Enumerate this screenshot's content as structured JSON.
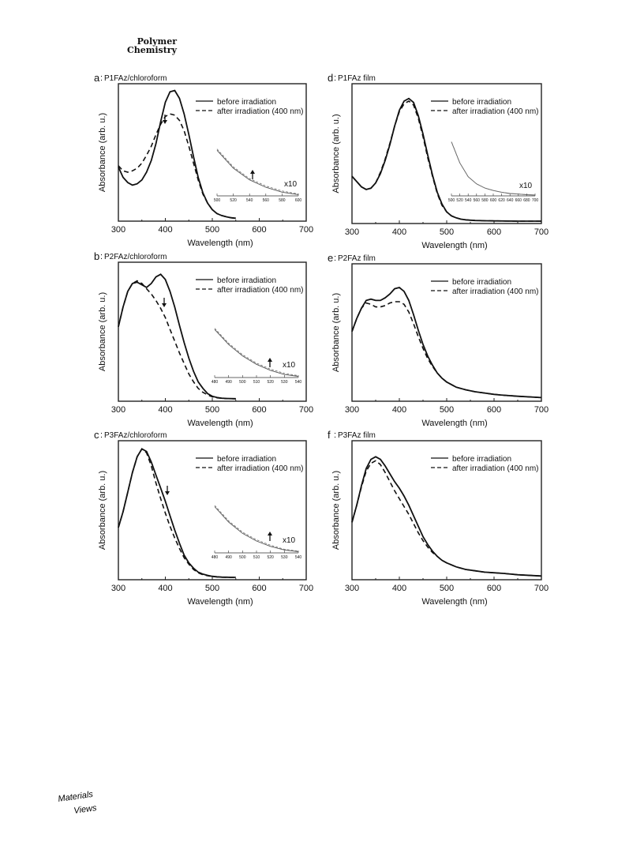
{
  "header": {
    "journal_line1": "Polymer",
    "journal_line2": "Chemistry"
  },
  "logo": {
    "text_line1": "Materials",
    "text_line2": "Views"
  },
  "shared": {
    "xlabel": "Wavelength (nm)",
    "ylabel": "Absorbance (arb. u.)",
    "legend_before": "before irradiation",
    "legend_after": "after irradiation (400 nm)"
  },
  "chart_data": [
    {
      "type": "line",
      "panel_letter": "a",
      "title": "P1FAz/chloroform",
      "xlim": [
        300,
        700
      ],
      "xticks": [
        300,
        400,
        500,
        600,
        700
      ],
      "xlabel": "Wavelength (nm)",
      "ylabel": "Absorbance (arb. u.)",
      "ylim": [
        0,
        1
      ],
      "legend": "top-right",
      "annotation_arrow": "down",
      "series": [
        {
          "name": "before irradiation",
          "style": "solid",
          "x": [
            300,
            310,
            320,
            330,
            340,
            350,
            360,
            370,
            380,
            390,
            400,
            410,
            420,
            430,
            440,
            450,
            460,
            470,
            480,
            490,
            500,
            510,
            520,
            530,
            540,
            550
          ],
          "y": [
            0.4,
            0.32,
            0.28,
            0.26,
            0.27,
            0.3,
            0.36,
            0.45,
            0.58,
            0.75,
            0.9,
            0.98,
            0.99,
            0.93,
            0.81,
            0.65,
            0.48,
            0.32,
            0.2,
            0.12,
            0.07,
            0.04,
            0.025,
            0.015,
            0.008,
            0.004
          ]
        },
        {
          "name": "after irradiation (400 nm)",
          "style": "dashed",
          "x": [
            300,
            310,
            320,
            330,
            340,
            350,
            360,
            370,
            380,
            390,
            400,
            410,
            420,
            430,
            440,
            450,
            460,
            470,
            480,
            490,
            500,
            510,
            520,
            530,
            540,
            550
          ],
          "y": [
            0.41,
            0.37,
            0.36,
            0.37,
            0.39,
            0.43,
            0.49,
            0.56,
            0.65,
            0.73,
            0.79,
            0.81,
            0.8,
            0.76,
            0.68,
            0.56,
            0.43,
            0.3,
            0.19,
            0.12,
            0.07,
            0.04,
            0.025,
            0.015,
            0.008,
            0.004
          ]
        }
      ],
      "inset": {
        "x": [
          500,
          520,
          540,
          560,
          580,
          600
        ],
        "xticklabels": [
          "500",
          "520",
          "540",
          "560",
          "580",
          "600"
        ],
        "label": "x10",
        "arrow": "up",
        "before": [
          0.74,
          0.45,
          0.26,
          0.14,
          0.06,
          0.02
        ],
        "after": [
          0.76,
          0.47,
          0.28,
          0.16,
          0.08,
          0.03
        ]
      }
    },
    {
      "type": "line",
      "panel_letter": "b",
      "title": "P2FAz/chloroform",
      "xlim": [
        300,
        700
      ],
      "xticks": [
        300,
        400,
        500,
        600,
        700
      ],
      "xlabel": "Wavelength (nm)",
      "ylabel": "Absorbance (arb. u.)",
      "ylim": [
        0,
        1
      ],
      "legend": "top-right",
      "annotation_arrow": "down",
      "series": [
        {
          "name": "before irradiation",
          "style": "solid",
          "x": [
            300,
            310,
            320,
            330,
            340,
            350,
            360,
            370,
            380,
            390,
            400,
            410,
            420,
            430,
            440,
            450,
            460,
            470,
            480,
            490,
            500,
            510,
            520,
            530,
            540,
            550
          ],
          "y": [
            0.55,
            0.7,
            0.82,
            0.88,
            0.89,
            0.87,
            0.85,
            0.88,
            0.93,
            0.95,
            0.91,
            0.82,
            0.7,
            0.56,
            0.43,
            0.31,
            0.21,
            0.13,
            0.08,
            0.04,
            0.02,
            0.01,
            0.005,
            0.003,
            0.002,
            0.001
          ]
        },
        {
          "name": "after irradiation (400 nm)",
          "style": "dashed",
          "x": [
            300,
            310,
            320,
            330,
            340,
            350,
            360,
            370,
            380,
            390,
            400,
            410,
            420,
            430,
            440,
            450,
            460,
            470,
            480,
            490,
            500,
            510,
            520,
            530,
            540,
            550
          ],
          "y": [
            0.55,
            0.7,
            0.82,
            0.88,
            0.9,
            0.88,
            0.84,
            0.8,
            0.75,
            0.69,
            0.62,
            0.53,
            0.44,
            0.35,
            0.27,
            0.19,
            0.13,
            0.08,
            0.05,
            0.03,
            0.015,
            0.008,
            0.004,
            0.002,
            0.001,
            0.0
          ]
        }
      ],
      "inset": {
        "x": [
          480,
          490,
          500,
          510,
          520,
          530,
          540
        ],
        "xticklabels": [
          "480",
          "490",
          "500",
          "510",
          "520",
          "530",
          "540"
        ],
        "label": "x10",
        "arrow": "up",
        "before": [
          0.8,
          0.55,
          0.36,
          0.22,
          0.12,
          0.05,
          0.02
        ],
        "after": [
          0.82,
          0.57,
          0.38,
          0.24,
          0.14,
          0.07,
          0.03
        ]
      }
    },
    {
      "type": "line",
      "panel_letter": "c",
      "title": "P3FAz/chloroform",
      "xlim": [
        300,
        700
      ],
      "xticks": [
        300,
        400,
        500,
        600,
        700
      ],
      "xlabel": "Wavelength (nm)",
      "ylabel": "Absorbance (arb. u.)",
      "ylim": [
        0,
        1
      ],
      "legend": "top-right",
      "annotation_arrow": "down",
      "series": [
        {
          "name": "before irradiation",
          "style": "solid",
          "x": [
            300,
            310,
            320,
            330,
            340,
            350,
            360,
            370,
            380,
            390,
            400,
            410,
            420,
            430,
            440,
            450,
            460,
            470,
            480,
            490,
            500,
            510,
            520,
            530,
            540,
            550
          ],
          "y": [
            0.38,
            0.5,
            0.65,
            0.8,
            0.92,
            0.98,
            0.96,
            0.88,
            0.78,
            0.68,
            0.58,
            0.47,
            0.36,
            0.26,
            0.17,
            0.11,
            0.07,
            0.04,
            0.025,
            0.015,
            0.008,
            0.004,
            0.002,
            0.001,
            0.0,
            0.0
          ]
        },
        {
          "name": "after irradiation (400 nm)",
          "style": "dashed",
          "x": [
            300,
            310,
            320,
            330,
            340,
            350,
            360,
            370,
            380,
            390,
            400,
            410,
            420,
            430,
            440,
            450,
            460,
            470,
            480,
            490,
            500,
            510,
            520,
            530,
            540,
            550
          ],
          "y": [
            0.38,
            0.5,
            0.65,
            0.8,
            0.92,
            0.98,
            0.95,
            0.85,
            0.72,
            0.6,
            0.49,
            0.39,
            0.3,
            0.22,
            0.15,
            0.1,
            0.06,
            0.035,
            0.02,
            0.012,
            0.006,
            0.003,
            0.001,
            0.0,
            0.0,
            0.0
          ]
        }
      ],
      "inset": {
        "x": [
          480,
          490,
          500,
          510,
          520,
          530,
          540
        ],
        "xticklabels": [
          "480",
          "490",
          "500",
          "510",
          "520",
          "530",
          "540"
        ],
        "label": "x10",
        "arrow": "up",
        "before": [
          0.78,
          0.52,
          0.33,
          0.2,
          0.11,
          0.05,
          0.02
        ],
        "after": [
          0.8,
          0.54,
          0.35,
          0.22,
          0.13,
          0.06,
          0.03
        ]
      }
    },
    {
      "type": "line",
      "panel_letter": "d",
      "title": "P1FAz film",
      "xlim": [
        300,
        700
      ],
      "xticks": [
        300,
        400,
        500,
        600,
        700
      ],
      "xlabel": "Wavelength (nm)",
      "ylabel": "Absorbance (arb. u.)",
      "ylim": [
        0,
        1
      ],
      "legend": "top-right",
      "series": [
        {
          "name": "before irradiation",
          "style": "solid",
          "x": [
            300,
            310,
            320,
            330,
            340,
            350,
            360,
            370,
            380,
            390,
            400,
            410,
            420,
            430,
            440,
            450,
            460,
            470,
            480,
            490,
            500,
            510,
            520,
            530,
            540,
            550,
            560,
            570,
            580,
            600,
            620,
            650,
            700
          ],
          "y": [
            0.34,
            0.3,
            0.26,
            0.24,
            0.25,
            0.29,
            0.36,
            0.46,
            0.58,
            0.72,
            0.84,
            0.91,
            0.93,
            0.9,
            0.8,
            0.66,
            0.5,
            0.35,
            0.22,
            0.13,
            0.07,
            0.04,
            0.025,
            0.015,
            0.01,
            0.007,
            0.005,
            0.004,
            0.003,
            0.002,
            0.001,
            0.0,
            0.0
          ]
        },
        {
          "name": "after irradiation (400 nm)",
          "style": "dashed",
          "x": [
            300,
            310,
            320,
            330,
            340,
            350,
            360,
            370,
            380,
            390,
            400,
            410,
            420,
            430,
            440,
            450,
            460,
            470,
            480,
            490,
            500,
            510,
            520,
            530,
            540,
            550,
            560,
            570,
            580,
            600,
            620,
            650,
            700
          ],
          "y": [
            0.34,
            0.3,
            0.26,
            0.24,
            0.25,
            0.29,
            0.37,
            0.47,
            0.59,
            0.72,
            0.83,
            0.89,
            0.91,
            0.88,
            0.78,
            0.64,
            0.48,
            0.34,
            0.21,
            0.12,
            0.07,
            0.04,
            0.025,
            0.015,
            0.01,
            0.007,
            0.005,
            0.004,
            0.003,
            0.002,
            0.001,
            0.0,
            0.0
          ]
        }
      ],
      "inset": {
        "x": [
          500,
          520,
          540,
          560,
          580,
          600,
          620,
          640,
          660,
          680,
          700
        ],
        "xticklabels": [
          "500",
          "520",
          "540",
          "560",
          "580",
          "600",
          "620",
          "640",
          "660",
          "680",
          "700"
        ],
        "label": "x10",
        "arrow": "",
        "before": [
          0.9,
          0.55,
          0.32,
          0.2,
          0.13,
          0.09,
          0.06,
          0.04,
          0.03,
          0.02,
          0.015
        ],
        "after": [
          0.9,
          0.55,
          0.32,
          0.2,
          0.13,
          0.09,
          0.06,
          0.04,
          0.03,
          0.02,
          0.015
        ]
      }
    },
    {
      "type": "line",
      "panel_letter": "e",
      "title": "P2FAz film",
      "xlim": [
        300,
        700
      ],
      "xticks": [
        300,
        400,
        500,
        600,
        700
      ],
      "xlabel": "Wavelength (nm)",
      "ylabel": "Absorbance (arb. u.)",
      "ylim": [
        0,
        1
      ],
      "legend": "top-right",
      "series": [
        {
          "name": "before irradiation",
          "style": "solid",
          "x": [
            300,
            310,
            320,
            330,
            340,
            350,
            360,
            370,
            380,
            390,
            400,
            410,
            420,
            430,
            440,
            450,
            460,
            470,
            480,
            490,
            500,
            520,
            540,
            560,
            580,
            600,
            620,
            650,
            700
          ],
          "y": [
            0.52,
            0.62,
            0.7,
            0.76,
            0.77,
            0.76,
            0.76,
            0.78,
            0.81,
            0.85,
            0.86,
            0.83,
            0.76,
            0.65,
            0.53,
            0.42,
            0.33,
            0.26,
            0.2,
            0.16,
            0.13,
            0.09,
            0.07,
            0.055,
            0.045,
            0.035,
            0.028,
            0.02,
            0.01
          ]
        },
        {
          "name": "after irradiation (400 nm)",
          "style": "dashed",
          "x": [
            300,
            310,
            320,
            330,
            340,
            350,
            360,
            370,
            380,
            390,
            400,
            410,
            420,
            430,
            440,
            450,
            460,
            470,
            480,
            490,
            500,
            520,
            540,
            560,
            580,
            600,
            620,
            650,
            700
          ],
          "y": [
            0.52,
            0.62,
            0.7,
            0.74,
            0.73,
            0.71,
            0.71,
            0.72,
            0.74,
            0.75,
            0.75,
            0.73,
            0.67,
            0.58,
            0.48,
            0.39,
            0.31,
            0.25,
            0.2,
            0.16,
            0.13,
            0.09,
            0.07,
            0.055,
            0.045,
            0.035,
            0.028,
            0.02,
            0.01
          ]
        }
      ]
    },
    {
      "type": "line",
      "panel_letter": "f",
      "title": "P3FAz film",
      "xlim": [
        300,
        700
      ],
      "xticks": [
        300,
        400,
        500,
        600,
        700
      ],
      "xlabel": "Wavelength (nm)",
      "ylabel": "Absorbance (arb. u.)",
      "ylim": [
        0,
        1
      ],
      "legend": "top-right",
      "series": [
        {
          "name": "before irradiation",
          "style": "solid",
          "x": [
            300,
            310,
            320,
            330,
            340,
            350,
            360,
            370,
            380,
            390,
            400,
            410,
            420,
            430,
            440,
            450,
            460,
            470,
            480,
            490,
            500,
            520,
            540,
            560,
            580,
            600,
            620,
            650,
            700
          ],
          "y": [
            0.42,
            0.55,
            0.7,
            0.83,
            0.9,
            0.92,
            0.9,
            0.85,
            0.79,
            0.73,
            0.68,
            0.62,
            0.55,
            0.47,
            0.39,
            0.31,
            0.25,
            0.2,
            0.16,
            0.13,
            0.11,
            0.08,
            0.06,
            0.05,
            0.04,
            0.035,
            0.03,
            0.02,
            0.01
          ]
        },
        {
          "name": "after irradiation (400 nm)",
          "style": "dashed",
          "x": [
            300,
            310,
            320,
            330,
            340,
            350,
            360,
            370,
            380,
            390,
            400,
            410,
            420,
            430,
            440,
            450,
            460,
            470,
            480,
            490,
            500,
            520,
            540,
            560,
            580,
            600,
            620,
            650,
            700
          ],
          "y": [
            0.42,
            0.55,
            0.69,
            0.81,
            0.87,
            0.89,
            0.86,
            0.8,
            0.73,
            0.66,
            0.6,
            0.54,
            0.48,
            0.41,
            0.34,
            0.28,
            0.23,
            0.19,
            0.16,
            0.13,
            0.11,
            0.08,
            0.06,
            0.05,
            0.04,
            0.035,
            0.03,
            0.02,
            0.01
          ]
        }
      ]
    }
  ]
}
